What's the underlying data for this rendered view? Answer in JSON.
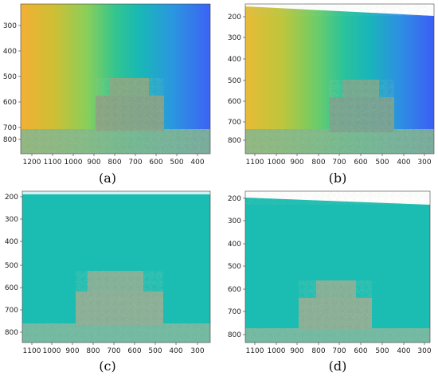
{
  "figure": {
    "panels": [
      {
        "id": "a",
        "caption": "(a)",
        "fill": "rainbow",
        "y_ticks": [
          "300",
          "400",
          "500",
          "600",
          "700",
          "800"
        ],
        "x_ticks": [
          "1200",
          "1100",
          "1000",
          "900",
          "800",
          "700",
          "600",
          "500",
          "400"
        ]
      },
      {
        "id": "b",
        "caption": "(b)",
        "fill": "rainbow",
        "y_ticks": [
          "200",
          "300",
          "400",
          "500",
          "600",
          "700",
          "800"
        ],
        "x_ticks": [
          "1100",
          "1000",
          "900",
          "800",
          "700",
          "600",
          "500",
          "400",
          "300"
        ]
      },
      {
        "id": "c",
        "caption": "(c)",
        "fill": "teal",
        "y_ticks": [
          "200",
          "300",
          "400",
          "500",
          "600",
          "700",
          "800"
        ],
        "x_ticks": [
          "1100",
          "1000",
          "900",
          "800",
          "700",
          "600",
          "500",
          "400",
          "300"
        ]
      },
      {
        "id": "d",
        "caption": "(d)",
        "fill": "teal",
        "y_ticks": [
          "200",
          "300",
          "400",
          "500",
          "600",
          "700",
          "800"
        ],
        "x_ticks": [
          "1100",
          "1000",
          "900",
          "800",
          "700",
          "600",
          "500",
          "400",
          "300"
        ]
      }
    ],
    "colors": {
      "gradient": [
        "#f2b435",
        "#d9c132",
        "#97cf52",
        "#39c98e",
        "#16b9b6",
        "#2a9bdd",
        "#3a6cf3"
      ],
      "teal": "#1bbdb2",
      "noise": "#7a9a82"
    }
  }
}
